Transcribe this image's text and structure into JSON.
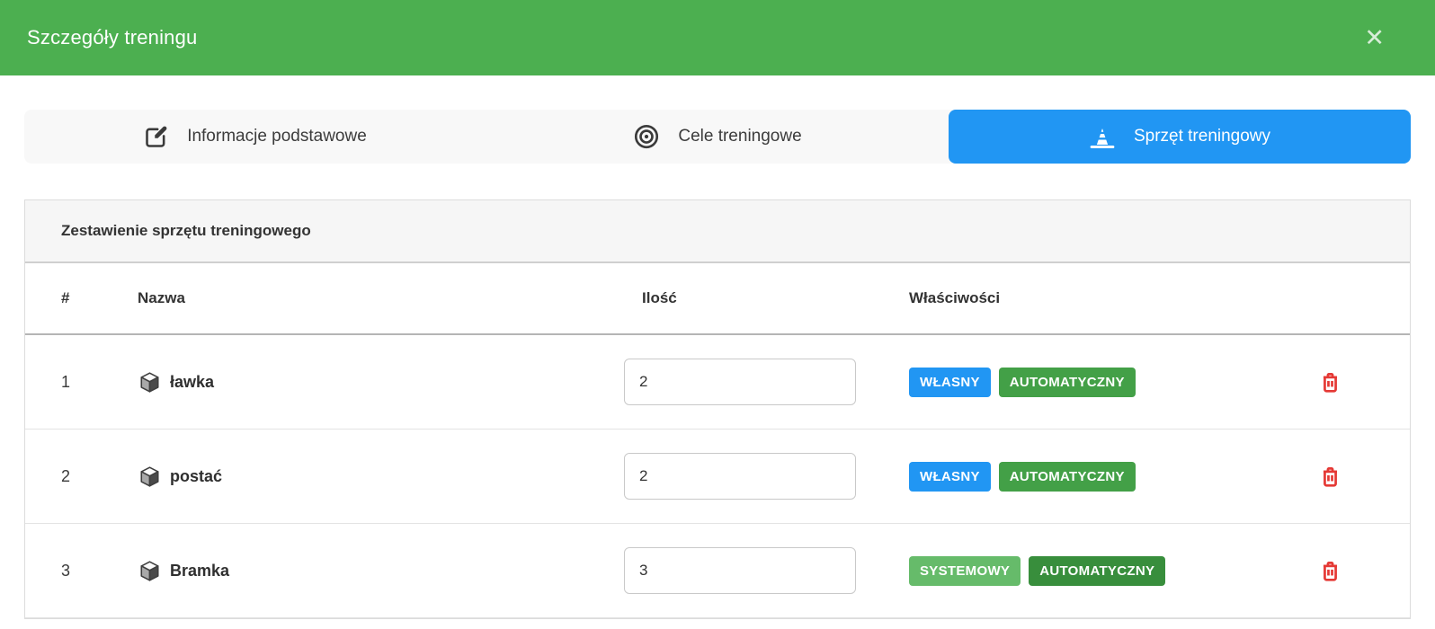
{
  "modal": {
    "title": "Szczegóły treningu",
    "close_icon": "✕"
  },
  "tabs": [
    {
      "label": "Informacje podstawowe",
      "icon": "edit-square-icon",
      "active": false
    },
    {
      "label": "Cele treningowe",
      "icon": "target-icon",
      "active": false
    },
    {
      "label": "Sprzęt treningowy",
      "icon": "traffic-cone-icon",
      "active": true
    }
  ],
  "panel": {
    "title": "Zestawienie sprzętu treningowego"
  },
  "table": {
    "headers": {
      "index": "#",
      "name": "Nazwa",
      "quantity": "Ilość",
      "properties": "Właściwości"
    },
    "rows": [
      {
        "index": "1",
        "name": "ławka",
        "quantity": "2",
        "badges": [
          {
            "label": "WŁASNY",
            "color": "#2196f3"
          },
          {
            "label": "AUTOMATYCZNY",
            "color": "#43a047"
          }
        ]
      },
      {
        "index": "2",
        "name": "postać",
        "quantity": "2",
        "badges": [
          {
            "label": "WŁASNY",
            "color": "#2196f3"
          },
          {
            "label": "AUTOMATYCZNY",
            "color": "#43a047"
          }
        ]
      },
      {
        "index": "3",
        "name": "Bramka",
        "quantity": "3",
        "badges": [
          {
            "label": "SYSTEMOWY",
            "color": "#66bb6a"
          },
          {
            "label": "AUTOMATYCZNY",
            "color": "#388e3c"
          }
        ]
      }
    ]
  },
  "colors": {
    "header_green": "#4caf50",
    "active_tab_blue": "#2196f3",
    "delete_red": "#e53935"
  }
}
